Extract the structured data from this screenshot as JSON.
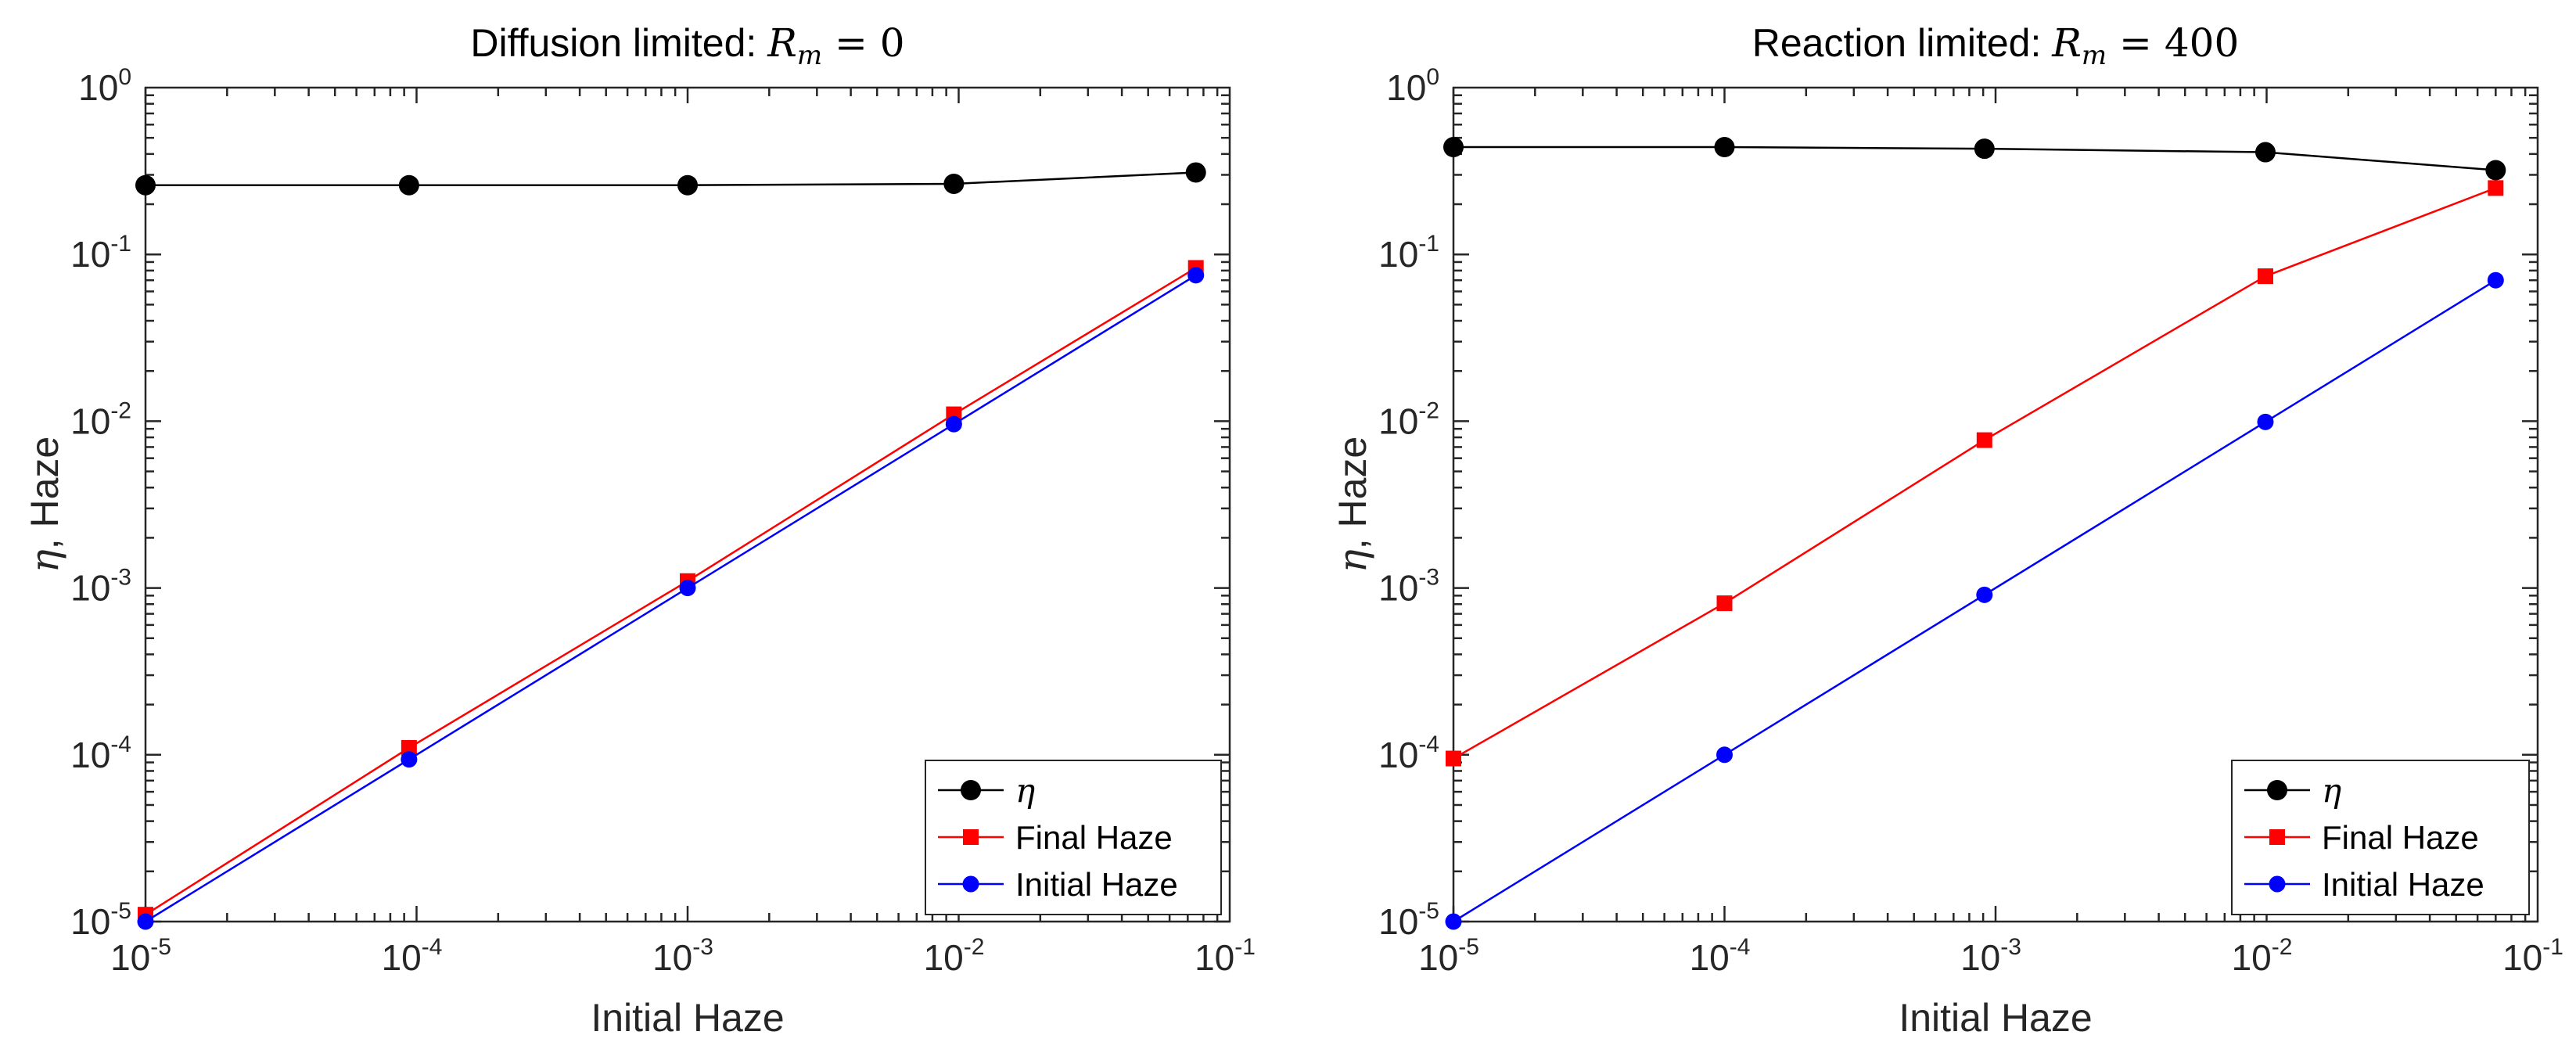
{
  "chart_data": [
    {
      "type": "line",
      "scale": "loglog",
      "title_prefix": "Diffusion limited: ",
      "title_var": "R",
      "title_sub": "m",
      "title_eq": " = ",
      "title_num": "0",
      "xlabel": "Initial Haze",
      "ylabel_sym": "η",
      "ylabel_rest": ", Haze",
      "xlim": [
        1e-05,
        0.1
      ],
      "ylim": [
        1e-05,
        1
      ],
      "x_ticks": [
        {
          "base": "10",
          "exp": "-5"
        },
        {
          "base": "10",
          "exp": "-4"
        },
        {
          "base": "10",
          "exp": "-3"
        },
        {
          "base": "10",
          "exp": "-2"
        },
        {
          "base": "10",
          "exp": "-1"
        }
      ],
      "y_ticks": [
        {
          "base": "10",
          "exp": "-5"
        },
        {
          "base": "10",
          "exp": "-4"
        },
        {
          "base": "10",
          "exp": "-3"
        },
        {
          "base": "10",
          "exp": "-2"
        },
        {
          "base": "10",
          "exp": "-1"
        },
        {
          "base": "10",
          "exp": "0"
        }
      ],
      "legend_position": "bottom-right",
      "series": [
        {
          "name": "η",
          "italic": true,
          "color": "#000000",
          "marker": "circle",
          "x": [
            1e-05,
            9.38e-05,
            0.001,
            0.0096,
            0.075
          ],
          "y": [
            0.26,
            0.26,
            0.26,
            0.265,
            0.31
          ]
        },
        {
          "name": "Final Haze",
          "italic": false,
          "color": "#ff0000",
          "marker": "square",
          "x": [
            1e-05,
            9.38e-05,
            0.001,
            0.0096,
            0.075
          ],
          "y": [
            1.1e-05,
            0.00011,
            0.0011,
            0.011,
            0.083
          ]
        },
        {
          "name": "Initial Haze",
          "italic": false,
          "color": "#0000ff",
          "marker": "circle",
          "x": [
            1e-05,
            9.38e-05,
            0.001,
            0.0096,
            0.075
          ],
          "y": [
            1e-05,
            9.38e-05,
            0.001,
            0.0096,
            0.075
          ]
        }
      ]
    },
    {
      "type": "line",
      "scale": "loglog",
      "title_prefix": "Reaction limited: ",
      "title_var": "R",
      "title_sub": "m",
      "title_eq": " = ",
      "title_num": "400",
      "xlabel": "Initial Haze",
      "ylabel_sym": "η",
      "ylabel_rest": ", Haze",
      "xlim": [
        1e-05,
        0.1
      ],
      "ylim": [
        1e-05,
        1
      ],
      "x_ticks": [
        {
          "base": "10",
          "exp": "-5"
        },
        {
          "base": "10",
          "exp": "-4"
        },
        {
          "base": "10",
          "exp": "-3"
        },
        {
          "base": "10",
          "exp": "-2"
        },
        {
          "base": "10",
          "exp": "-1"
        }
      ],
      "y_ticks": [
        {
          "base": "10",
          "exp": "-5"
        },
        {
          "base": "10",
          "exp": "-4"
        },
        {
          "base": "10",
          "exp": "-3"
        },
        {
          "base": "10",
          "exp": "-2"
        },
        {
          "base": "10",
          "exp": "-1"
        },
        {
          "base": "10",
          "exp": "0"
        }
      ],
      "legend_position": "bottom-right",
      "series": [
        {
          "name": "η",
          "italic": true,
          "color": "#000000",
          "marker": "circle",
          "x": [
            1e-05,
            0.0001,
            0.00091,
            0.0099,
            0.07
          ],
          "y": [
            0.44,
            0.44,
            0.43,
            0.41,
            0.32
          ]
        },
        {
          "name": "Final Haze",
          "italic": false,
          "color": "#ff0000",
          "marker": "square",
          "x": [
            1e-05,
            0.0001,
            0.00091,
            0.0099,
            0.07
          ],
          "y": [
            9.5e-05,
            0.00081,
            0.0077,
            0.074,
            0.25
          ]
        },
        {
          "name": "Initial Haze",
          "italic": false,
          "color": "#0000ff",
          "marker": "circle",
          "x": [
            1e-05,
            0.0001,
            0.00091,
            0.0099,
            0.07
          ],
          "y": [
            1e-05,
            0.0001,
            0.00091,
            0.0099,
            0.07
          ]
        }
      ]
    }
  ]
}
